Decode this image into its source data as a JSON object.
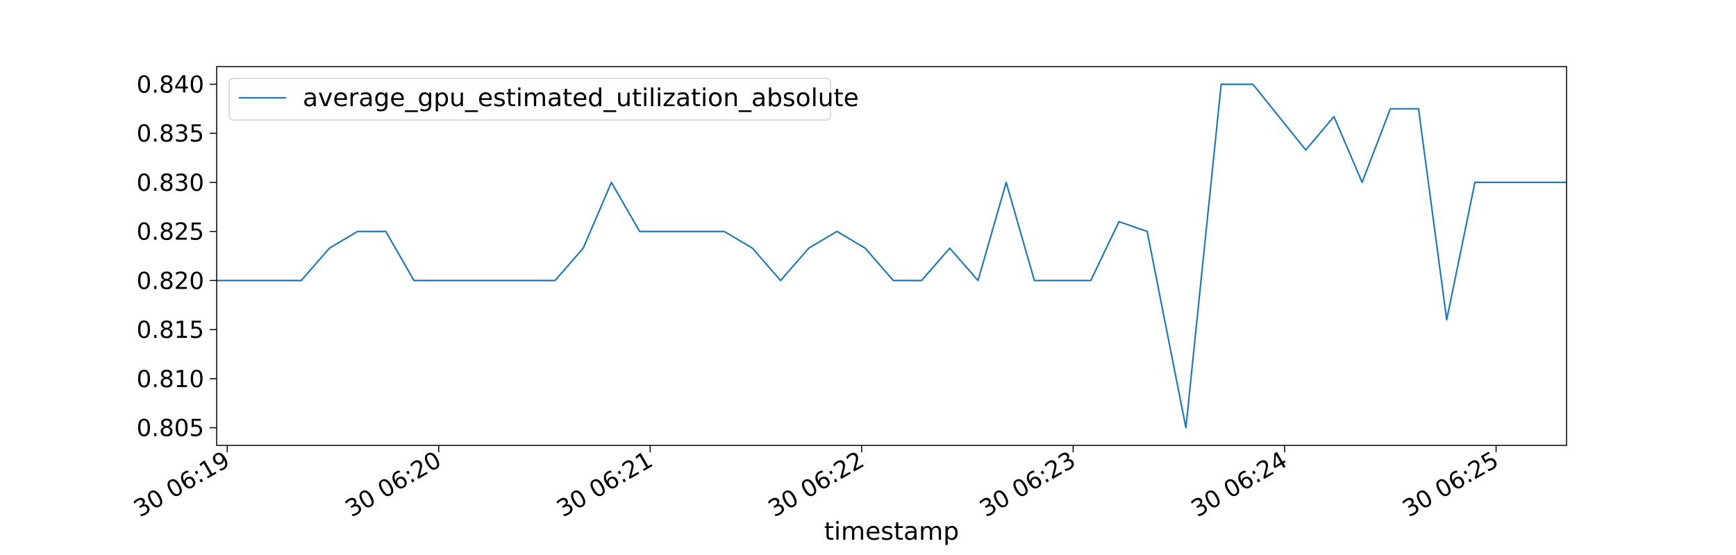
{
  "chart_data": {
    "type": "line",
    "title": "",
    "xlabel": "timestamp",
    "ylabel": "",
    "grid": false,
    "legend_placement": "upper-left",
    "x_axis_kind": "time",
    "x_ticks": [
      "30 06:19",
      "30 06:20",
      "30 06:21",
      "30 06:22",
      "30 06:23",
      "30 06:24",
      "30 06:25"
    ],
    "x_tick_times": [
      "06:19:00",
      "06:20:00",
      "06:21:00",
      "06:22:00",
      "06:23:00",
      "06:24:00",
      "06:25:00"
    ],
    "xlim": [
      "06:18:57",
      "06:25:20"
    ],
    "y_ticks": [
      "0.805",
      "0.810",
      "0.815",
      "0.820",
      "0.825",
      "0.830",
      "0.835",
      "0.840"
    ],
    "ylim": [
      0.8032,
      0.8418
    ],
    "colors": {
      "line": "#1f77b4"
    },
    "series": [
      {
        "name": "average_gpu_estimated_utilization_absolute",
        "x": [
          "06:18:57",
          "06:19:05",
          "06:19:13",
          "06:19:21",
          "06:19:29",
          "06:19:37",
          "06:19:45",
          "06:19:53",
          "06:20:01",
          "06:20:09",
          "06:20:17",
          "06:20:25",
          "06:20:33",
          "06:20:41",
          "06:20:49",
          "06:20:57",
          "06:21:05",
          "06:21:13",
          "06:21:21",
          "06:21:29",
          "06:21:37",
          "06:21:45",
          "06:21:53",
          "06:22:01",
          "06:22:09",
          "06:22:17",
          "06:22:25",
          "06:22:33",
          "06:22:41",
          "06:22:49",
          "06:22:57",
          "06:23:05",
          "06:23:13",
          "06:23:21",
          "06:23:32",
          "06:23:42",
          "06:23:51",
          "06:24:06",
          "06:24:14",
          "06:24:22",
          "06:24:30",
          "06:24:38",
          "06:24:46",
          "06:24:54",
          "06:25:02",
          "06:25:20"
        ],
        "values": [
          0.82,
          0.82,
          0.82,
          0.82,
          0.8233,
          0.825,
          0.825,
          0.82,
          0.82,
          0.82,
          0.82,
          0.82,
          0.82,
          0.8233,
          0.83,
          0.825,
          0.825,
          0.825,
          0.825,
          0.8233,
          0.82,
          0.8233,
          0.825,
          0.8233,
          0.82,
          0.82,
          0.8233,
          0.82,
          0.83,
          0.82,
          0.82,
          0.82,
          0.826,
          0.825,
          0.805,
          0.84,
          0.84,
          0.8333,
          0.8367,
          0.83,
          0.8375,
          0.8375,
          0.816,
          0.83,
          0.83,
          0.83
        ]
      }
    ]
  }
}
